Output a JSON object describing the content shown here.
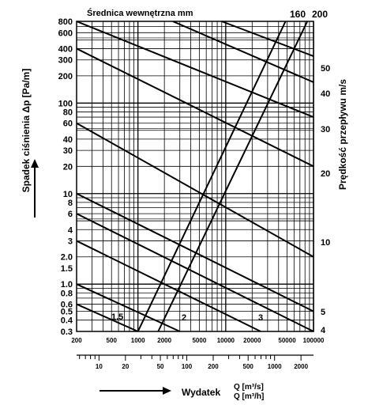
{
  "chart_data": {
    "type": "line",
    "title": "Średnica wewnętrzna mm",
    "ylabel": "Spadek ciśnienia Δp [Pa/m]",
    "ylabel_right": "Prędkość przepływu m/s",
    "xlabel": "Wydatek",
    "x_units": [
      "Q [m³/s]",
      "Q [m³/h]"
    ],
    "x_scale": "log",
    "y_scale": "log",
    "xlim": [
      200,
      100000
    ],
    "ylim": [
      0.3,
      800
    ],
    "x_ticks": [
      "200",
      "500",
      "1000",
      "2000",
      "5000",
      "10000",
      "20000",
      "50000",
      "100000"
    ],
    "x2_ticks": [
      "10",
      "20",
      "50",
      "100",
      "200",
      "500",
      "1000",
      "2000"
    ],
    "y_ticks": [
      "800",
      "600",
      "400",
      "300",
      "200",
      "100",
      "80",
      "60",
      "40",
      "30",
      "20",
      "10",
      "8",
      "6",
      "4",
      "3",
      "2.0",
      "1.5",
      "1.0",
      "0.8",
      "0.6",
      "0.5",
      "0.4",
      "0.3"
    ],
    "velocity_ticks": [
      "50",
      "40",
      "30",
      "20",
      "10",
      "5",
      "4"
    ],
    "velocity_lines": [
      {
        "label": "1.5",
        "x": [
          200,
          1000
        ],
        "y": [
          0.6,
          0.3
        ]
      },
      {
        "label": "2",
        "x": [
          200,
          3000
        ],
        "y": [
          1.0,
          0.3
        ]
      },
      {
        "label": "3",
        "x": [
          200,
          25000
        ],
        "y": [
          3.0,
          0.3
        ]
      },
      {
        "label": "4",
        "x": [
          200,
          100000
        ],
        "y": [
          6.0,
          0.3
        ]
      },
      {
        "label": "5",
        "x": [
          200,
          100000
        ],
        "y": [
          10.0,
          0.5
        ]
      },
      {
        "label": "10",
        "x": [
          200,
          100000
        ],
        "y": [
          60.0,
          2.0
        ]
      },
      {
        "label": "20",
        "x": [
          200,
          100000
        ],
        "y": [
          400.0,
          20.0
        ]
      },
      {
        "label": "30",
        "x": [
          200,
          100000
        ],
        "y": [
          800.0,
          70.0
        ]
      },
      {
        "label": "40",
        "x": [
          2500,
          100000
        ],
        "y": [
          800.0,
          170.0
        ]
      },
      {
        "label": "50",
        "x": [
          9000,
          100000
        ],
        "y": [
          800.0,
          330.0
        ]
      }
    ],
    "diameter_lines": [
      {
        "label": "160",
        "x": [
          1000,
          48000
        ],
        "y": [
          0.3,
          800
        ]
      },
      {
        "label": "200",
        "x": [
          1700,
          85000
        ],
        "y": [
          0.3,
          800
        ]
      }
    ],
    "grid": true
  }
}
